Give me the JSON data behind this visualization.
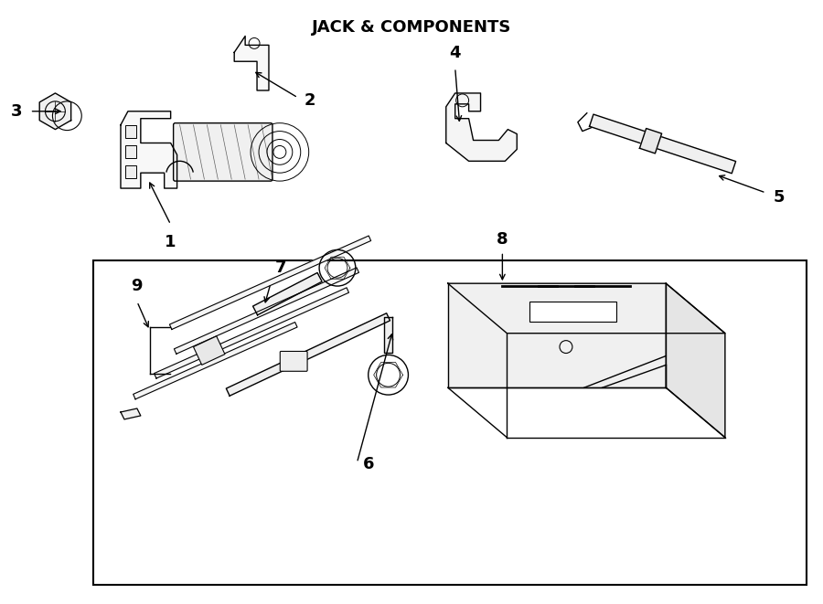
{
  "title": "JACK & COMPONENTS",
  "bg_color": "#ffffff",
  "line_color": "#000000"
}
